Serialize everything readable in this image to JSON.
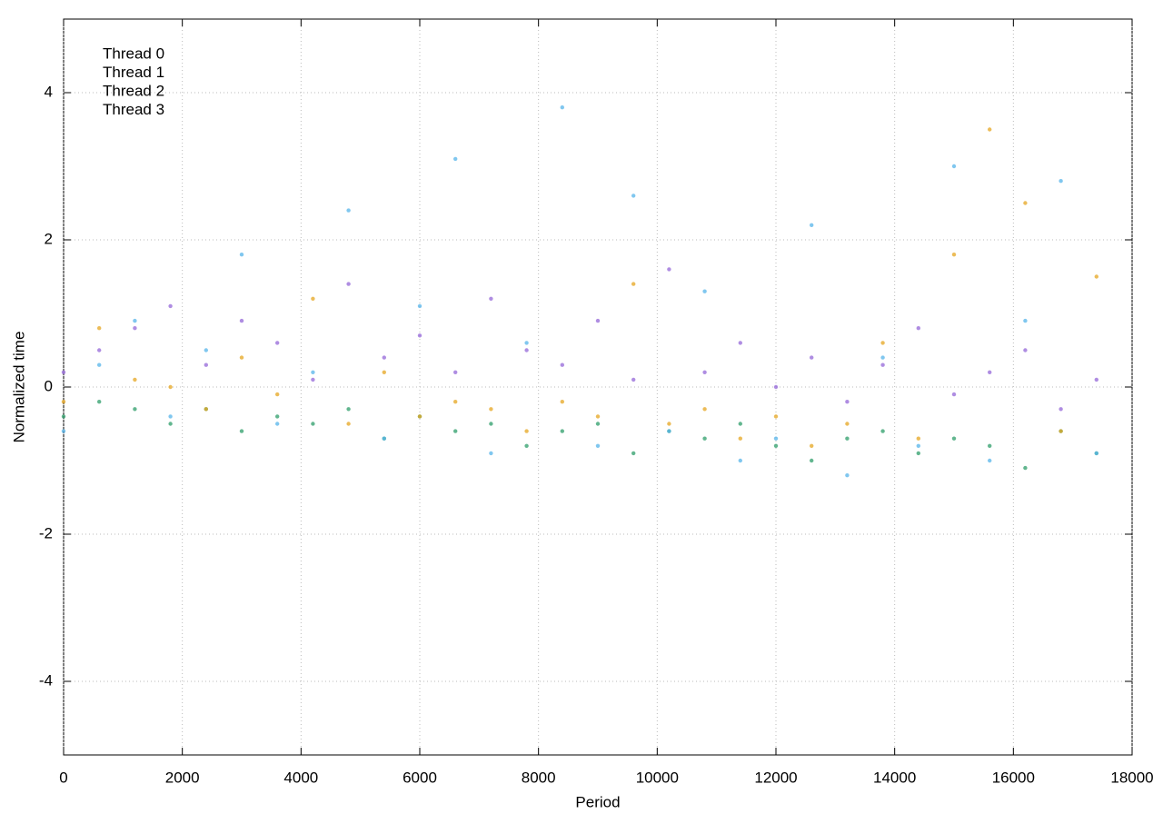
{
  "chart_data": {
    "type": "scatter",
    "x_label": "Period",
    "y_label": "Normalized time",
    "x": [
      0,
      600,
      1200,
      1800,
      2400,
      3000,
      3600,
      4200,
      4800,
      5400,
      6000,
      6600,
      7200,
      7800,
      8400,
      9000,
      9600,
      10200,
      10800,
      11400,
      12000,
      12600,
      13200,
      13800,
      14400,
      15000,
      15600,
      16200,
      16800,
      17400
    ],
    "series": [
      {
        "name": "Thread 0",
        "color": "#9467d8",
        "values": [
          0.2,
          0.5,
          0.8,
          1.1,
          0.3,
          0.9,
          0.6,
          0.1,
          1.4,
          0.4,
          0.7,
          0.2,
          1.2,
          0.5,
          0.3,
          0.9,
          0.1,
          1.6,
          0.2,
          0.6,
          0.0,
          0.4,
          -0.2,
          0.3,
          0.8,
          -0.1,
          0.2,
          0.5,
          -0.3,
          0.1
        ]
      },
      {
        "name": "Thread 1",
        "color": "#2e9e6a",
        "values": [
          -0.4,
          -0.2,
          -0.3,
          -0.5,
          -0.3,
          -0.6,
          -0.4,
          -0.5,
          -0.3,
          -0.7,
          -0.4,
          -0.6,
          -0.5,
          -0.8,
          -0.6,
          -0.5,
          -0.9,
          -0.6,
          -0.7,
          -0.5,
          -0.8,
          -1.0,
          -0.7,
          -0.6,
          -0.9,
          -0.7,
          -0.8,
          -1.1,
          -0.6,
          -0.9
        ]
      },
      {
        "name": "Thread 2",
        "color": "#56b4e9",
        "values": [
          -0.6,
          0.3,
          0.9,
          -0.4,
          0.5,
          1.8,
          -0.5,
          0.2,
          2.4,
          -0.7,
          1.1,
          3.1,
          -0.9,
          0.6,
          3.8,
          -0.8,
          2.6,
          -0.6,
          1.3,
          -1.0,
          -0.7,
          2.2,
          -1.2,
          0.4,
          -0.8,
          3.0,
          -1.0,
          0.9,
          2.8,
          -0.9
        ]
      },
      {
        "name": "Thread 3",
        "color": "#e6a520",
        "values": [
          -0.2,
          0.8,
          0.1,
          0.0,
          -0.3,
          0.4,
          -0.1,
          1.2,
          -0.5,
          0.2,
          -0.4,
          -0.2,
          -0.3,
          -0.6,
          -0.2,
          -0.4,
          1.4,
          -0.5,
          -0.3,
          -0.7,
          -0.4,
          -0.8,
          -0.5,
          0.6,
          -0.7,
          1.8,
          3.5,
          2.5,
          -0.6,
          1.5
        ]
      }
    ],
    "xlim": [
      0,
      18000
    ],
    "xticks": [
      0,
      2000,
      4000,
      6000,
      8000,
      10000,
      12000,
      14000,
      16000,
      18000
    ],
    "ylim": [
      -5,
      5
    ],
    "yticks": [
      -4,
      -2,
      0,
      2,
      4
    ],
    "grid": true,
    "legend": "top-left"
  }
}
